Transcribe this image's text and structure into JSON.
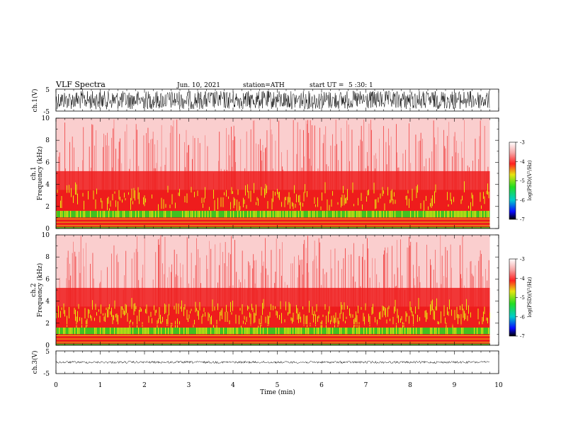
{
  "header": {
    "title": "VLF Spectra",
    "date": "Jun. 10, 2021",
    "station": "station=ATH",
    "start": "start UT =",
    "start_value": "5 :30: 1"
  },
  "chart_data": [
    {
      "type": "line",
      "ylabel": "ch.1(V)",
      "ylim": [
        -5,
        5
      ],
      "yticks": [
        "5",
        "-5"
      ],
      "xlim": [
        0,
        10
      ],
      "x_end": 9.8,
      "amplitude": "±4"
    },
    {
      "type": "heatmap",
      "ylabel_line1": "ch.1",
      "ylabel_line2": "Frequency (kHz)",
      "ylim": [
        0,
        10
      ],
      "yticks": [
        "10",
        "8",
        "6",
        "4",
        "2",
        "0"
      ],
      "colorbar": {
        "label": "log(PSD)(V²/Hz)",
        "ticks": [
          "-3",
          "-4",
          "-5",
          "-6",
          "-7"
        ],
        "range": [
          -7,
          -3
        ]
      }
    },
    {
      "type": "heatmap",
      "ylabel_line1": "ch.2",
      "ylabel_line2": "Frequency (kHz)",
      "ylim": [
        0,
        10
      ],
      "yticks": [
        "10",
        "8",
        "6",
        "4",
        "2",
        "0"
      ],
      "colorbar": {
        "label": "log(PSD)(V²/Hz)",
        "ticks": [
          "-3",
          "-4",
          "-5",
          "-6",
          "-7"
        ],
        "range": [
          -7,
          -3
        ]
      }
    },
    {
      "type": "line",
      "ylabel": "ch.3(V)",
      "ylim": [
        -5,
        5
      ],
      "yticks": [
        "5",
        "-5"
      ],
      "xlim": [
        0,
        10
      ],
      "xlabel": "Time (min)",
      "xticks": [
        "0",
        "1",
        "2",
        "3",
        "4",
        "5",
        "6",
        "7",
        "8",
        "9",
        "10"
      ]
    }
  ],
  "colors": {
    "red": "#ee1c1c",
    "pink": "#f6a5a5",
    "yellow": "#e8e410",
    "green": "#22dd22",
    "line": "#000000"
  }
}
